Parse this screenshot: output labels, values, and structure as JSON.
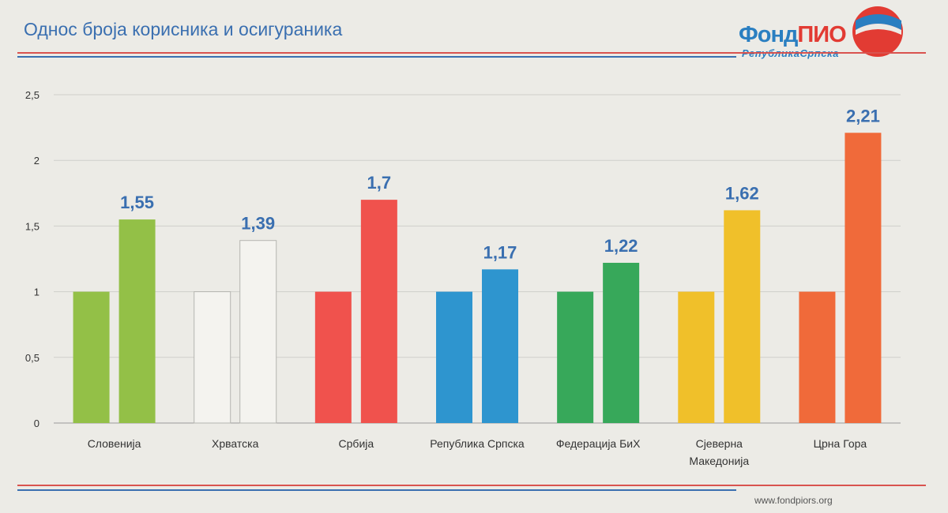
{
  "title": "Однос броја корисника и осигураника",
  "logo": {
    "word_part1": "Фонд",
    "word_part2": "ПИО",
    "subtitle": "РепубликаСрпска"
  },
  "footer": {
    "url": "www.fondpiors.org"
  },
  "colors": {
    "title": "#3a6fb0",
    "rule_red": "#d9534f",
    "rule_blue": "#3a6fb0",
    "logo_blue": "#2a7fc1",
    "logo_red": "#e23b33"
  },
  "chart_data": {
    "type": "bar",
    "categories": [
      [
        "Словенија"
      ],
      [
        "Хрватска"
      ],
      [
        "Србија"
      ],
      [
        "Република Српска"
      ],
      [
        "Федерација БиХ"
      ],
      [
        "Сјеверна",
        "Македонија"
      ],
      [
        "Црна Гора"
      ]
    ],
    "series": [
      {
        "values": [
          1,
          1,
          1,
          1,
          1,
          1,
          1
        ]
      },
      {
        "values": [
          1.55,
          1.39,
          1.7,
          1.17,
          1.22,
          1.62,
          2.21
        ]
      }
    ],
    "data_labels": [
      "1,55",
      "1,39",
      "1,7",
      "1,17",
      "1,22",
      "1,62",
      "2,21"
    ],
    "bar_colors": [
      "#93c047",
      "#f4f3ef",
      "#f0524d",
      "#2e95cf",
      "#37a85a",
      "#f0c02a",
      "#f06a3a"
    ],
    "y_ticks": [
      "0",
      "0,5",
      "1",
      "1,5",
      "2",
      "2,5"
    ],
    "ylim": [
      0,
      2.5
    ],
    "grid": true,
    "legend": "none",
    "xlabel": "",
    "ylabel": ""
  }
}
